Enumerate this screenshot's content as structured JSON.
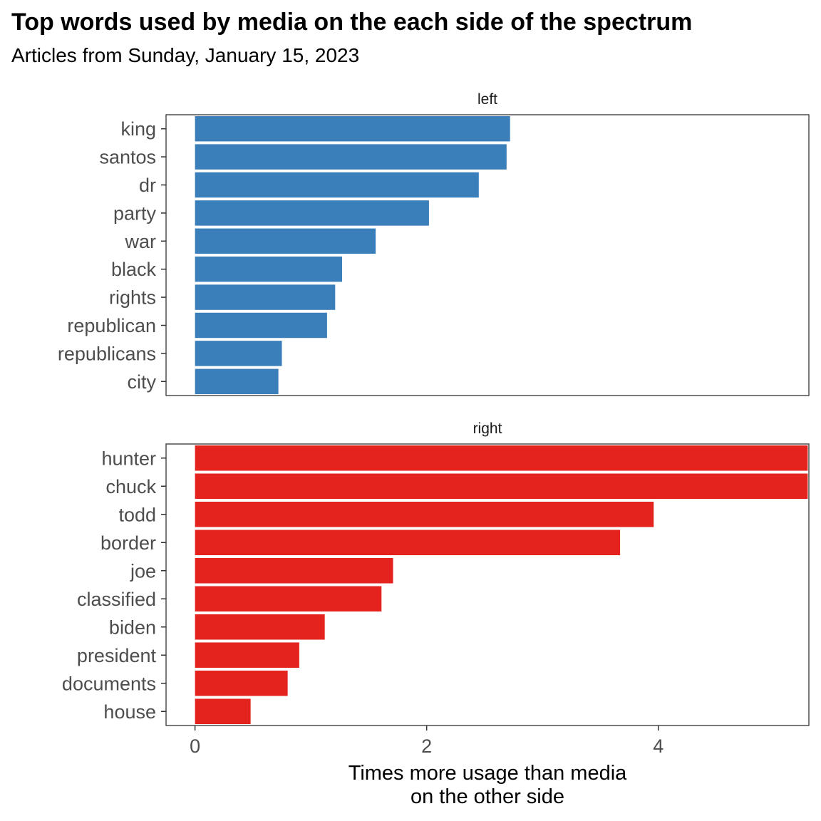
{
  "header": {
    "title": "Top words used by media on the each side of the spectrum",
    "subtitle": "Articles from Sunday, January 15, 2023"
  },
  "chart_data": {
    "type": "bar",
    "orientation": "horizontal",
    "title": "Top words used by media on the each side of the spectrum",
    "subtitle": "Articles from Sunday, January 15, 2023",
    "xlabel": [
      "Times more usage than media",
      "on the other side"
    ],
    "ylabel": "",
    "xlim": [
      -0.25,
      5.3
    ],
    "xticks": [
      0,
      2,
      4
    ],
    "grid": false,
    "legend": "none",
    "facets": [
      {
        "name": "left",
        "color": "#3a7fba",
        "categories": [
          "king",
          "santos",
          "dr",
          "party",
          "war",
          "black",
          "rights",
          "republican",
          "republicans",
          "city"
        ],
        "values": [
          2.72,
          2.69,
          2.45,
          2.02,
          1.56,
          1.27,
          1.21,
          1.14,
          0.75,
          0.72
        ]
      },
      {
        "name": "right",
        "color": "#e4231f",
        "categories": [
          "hunter",
          "chuck",
          "todd",
          "border",
          "joe",
          "classified",
          "biden",
          "president",
          "documents",
          "house"
        ],
        "values": [
          5.29,
          5.29,
          3.96,
          3.67,
          1.71,
          1.61,
          1.12,
          0.9,
          0.8,
          0.48
        ]
      }
    ]
  }
}
